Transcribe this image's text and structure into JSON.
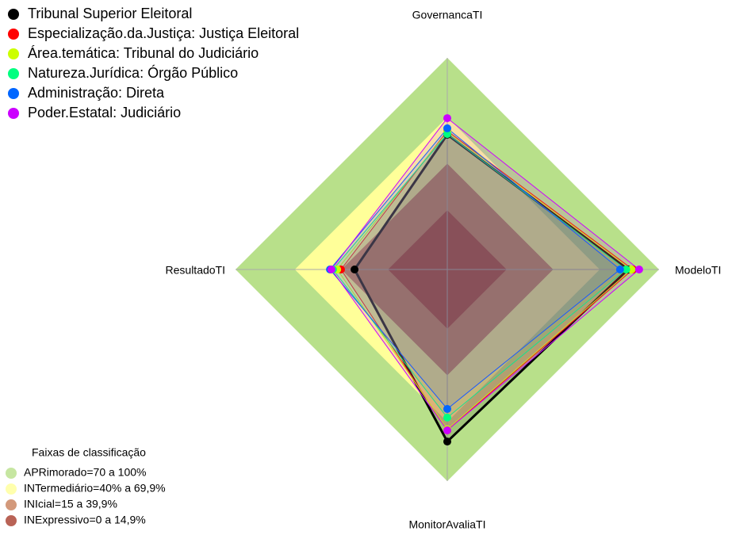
{
  "chart_data": {
    "type": "radar",
    "axes": [
      "GovernancaTI",
      "ModeloTI",
      "MonitorAvaliaTI",
      "ResultadoTI"
    ],
    "rlim": [
      0,
      100
    ],
    "series": [
      {
        "name": "Tribunal Superior Eleitoral",
        "color": "#000000",
        "values": [
          63.7,
          85.4,
          81.3,
          43.8
        ]
      },
      {
        "name": "Especialização.da.Justiça: Justiça Eleitoral",
        "color": "#ff0000",
        "values": [
          65.5,
          87.6,
          76,
          50.2
        ]
      },
      {
        "name": "Área.temática: Tribunal do Judiciário",
        "color": "#ccff00",
        "values": [
          65,
          87,
          75.5,
          52
        ]
      },
      {
        "name": "Natureza.Jurídica: Órgão Público",
        "color": "#00ff80",
        "values": [
          64,
          84.5,
          70,
          54
        ]
      },
      {
        "name": "Administração: Direta",
        "color": "#0066ff",
        "values": [
          66.7,
          81.6,
          65.9,
          55.4
        ]
      },
      {
        "name": "Poder.Estatal: Judiciário",
        "color": "#cc00ff",
        "values": [
          71.5,
          90.6,
          76,
          54.7
        ]
      }
    ],
    "bands_title": "Faixas de classificação",
    "bands": [
      {
        "label": "APRimorado=70 a 100%",
        "color": "#b8e08a",
        "max": 100
      },
      {
        "label": "INTermediário=40% a 69,9%",
        "color": "#ffff99",
        "max": 72
      },
      {
        "label": "INIcial=15 a 39,9%",
        "color": "#c8805a",
        "max": 50
      },
      {
        "label": "INExpressivo=0 a 14,9%",
        "color": "#a83c2c",
        "max": 28
      }
    ]
  }
}
